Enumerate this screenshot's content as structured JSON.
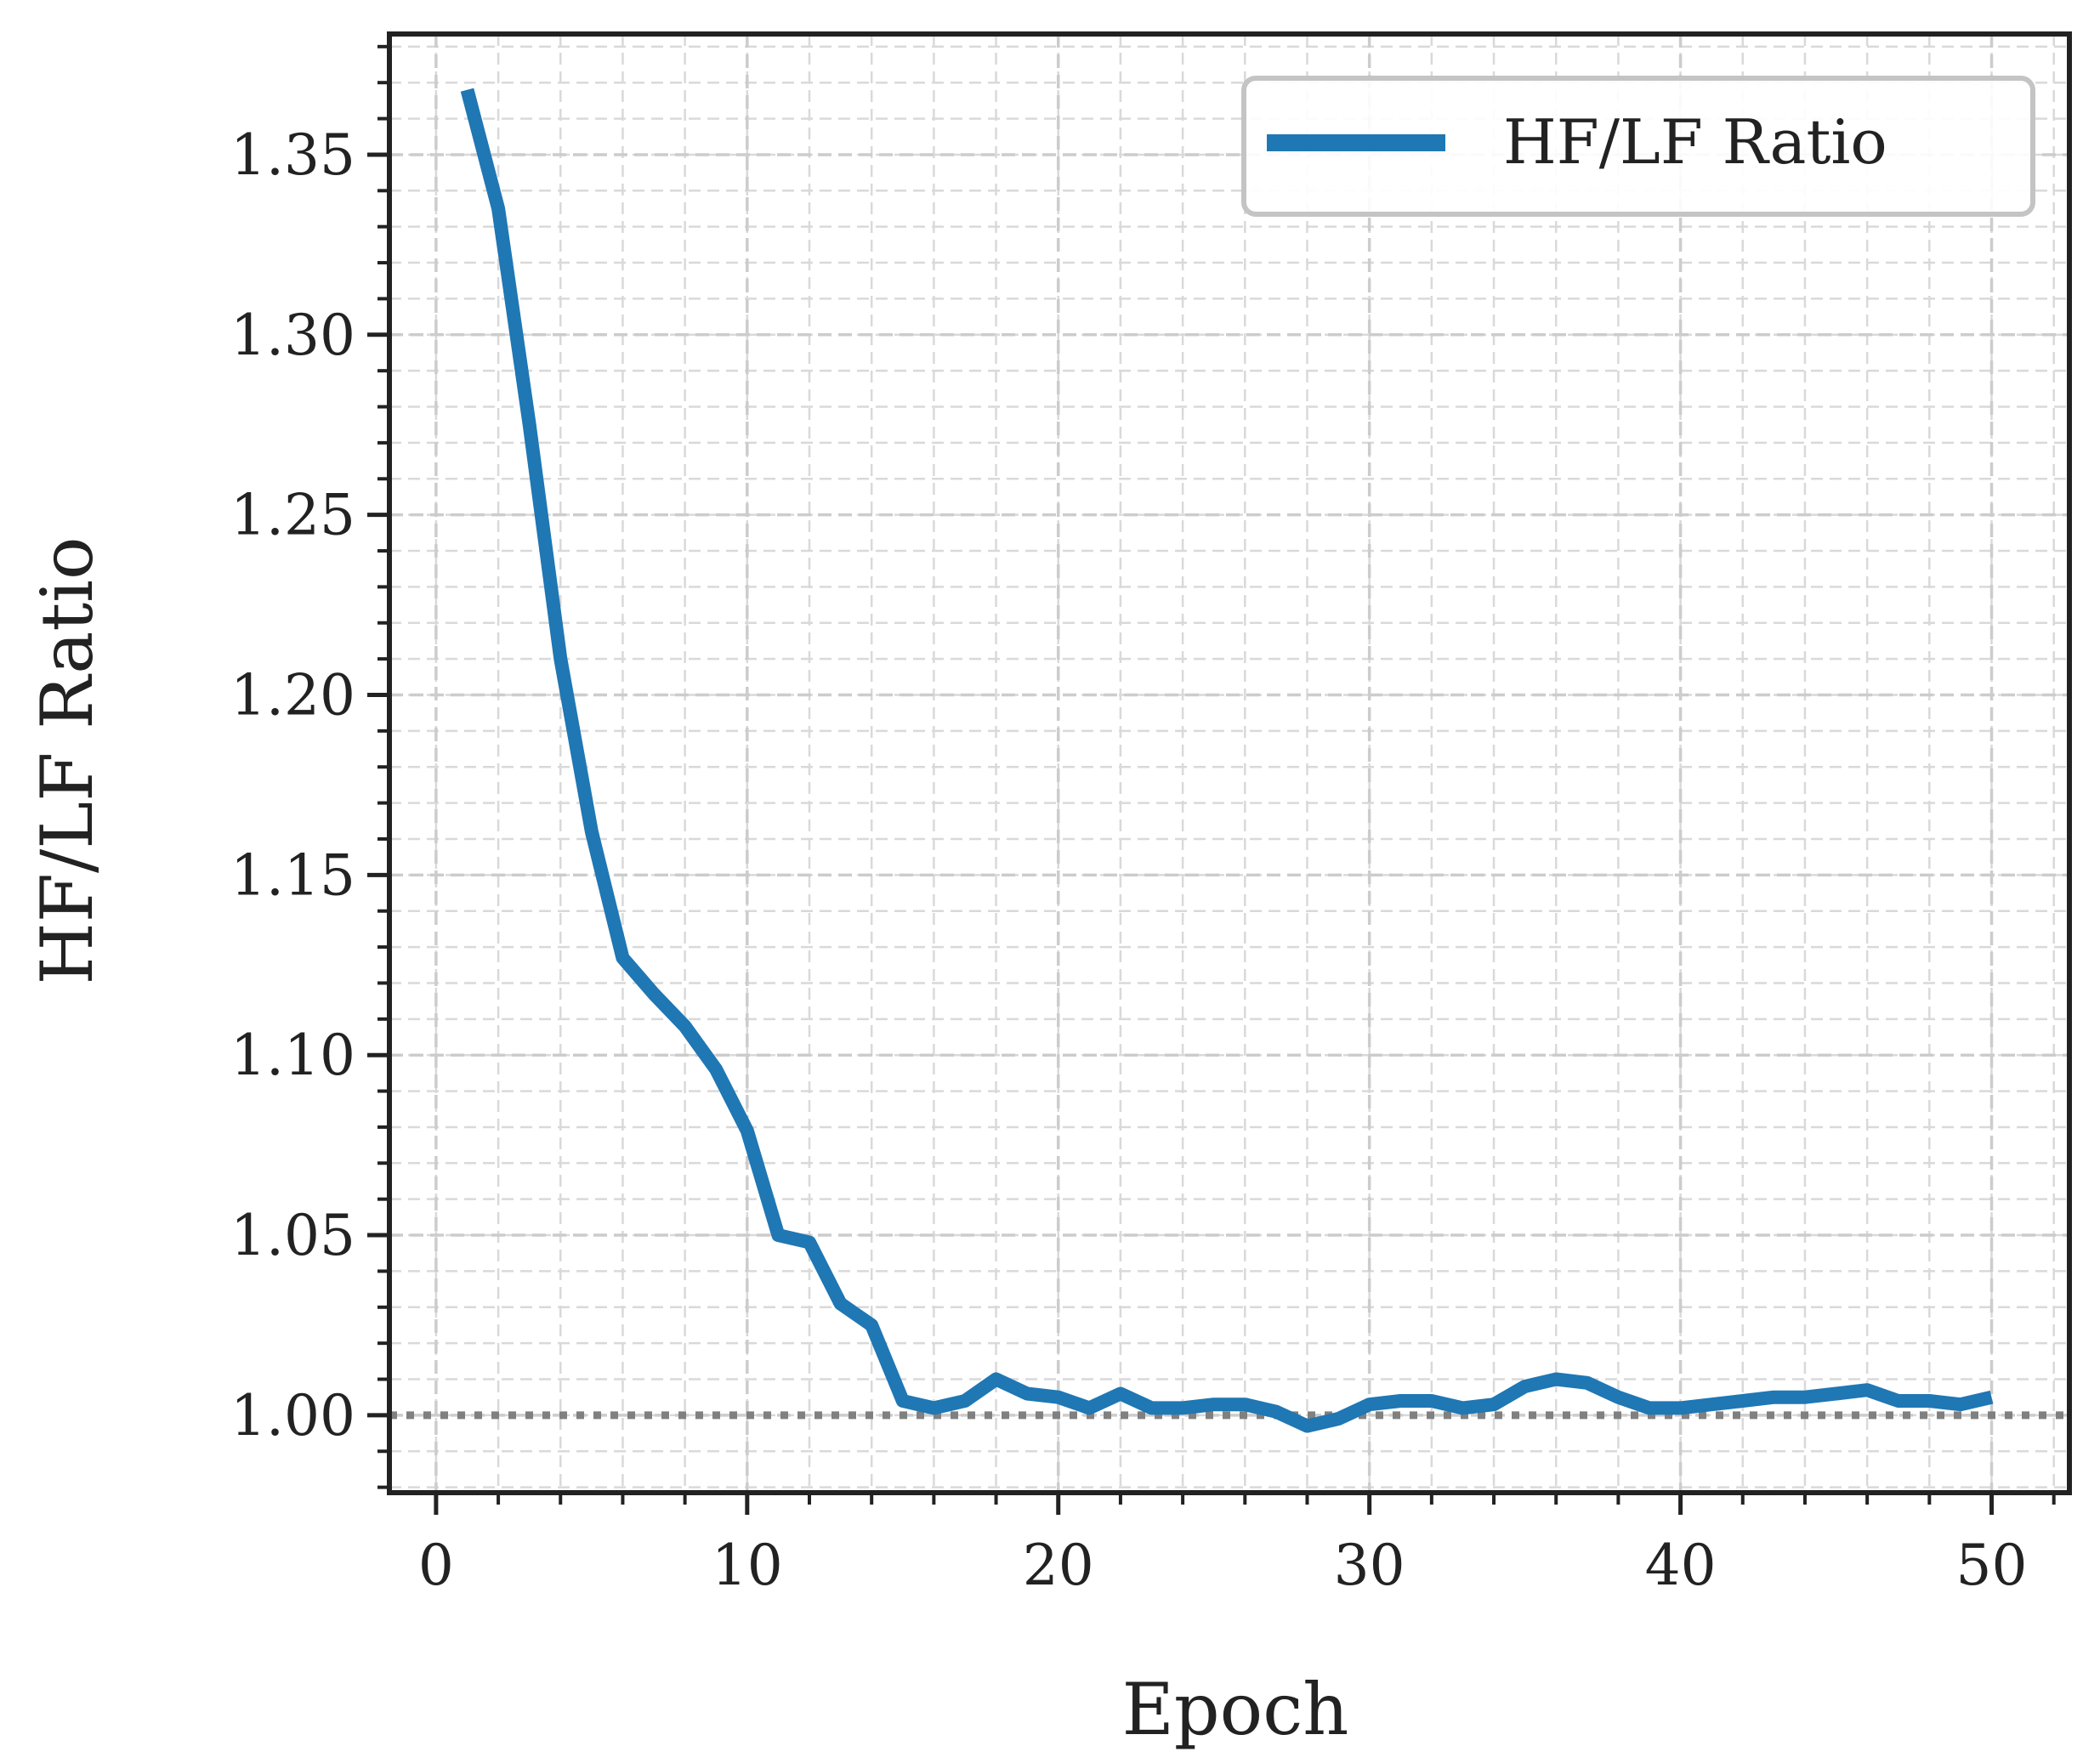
{
  "chart_data": {
    "type": "line",
    "xlabel": "Epoch",
    "ylabel": "HF/LF Ratio",
    "xlim": [
      -1.5,
      52.5
    ],
    "ylim": [
      0.9785,
      1.3835
    ],
    "xticks": [
      0,
      10,
      20,
      30,
      40,
      50
    ],
    "xtick_labels": [
      "0",
      "10",
      "20",
      "30",
      "40",
      "50"
    ],
    "yticks": [
      1.0,
      1.05,
      1.1,
      1.15,
      1.2,
      1.25,
      1.3,
      1.35
    ],
    "ytick_labels": [
      "1.00",
      "1.05",
      "1.10",
      "1.15",
      "1.20",
      "1.25",
      "1.30",
      "1.35"
    ],
    "x_minor_step": 2,
    "y_minor_step": 0.01,
    "grid": true,
    "legend": {
      "placement": "top-right",
      "entries": [
        "HF/LF Ratio"
      ]
    },
    "reference_line": {
      "y": 1.0,
      "style": "dotted",
      "color": "#808080"
    },
    "series": [
      {
        "name": "HF/LF Ratio",
        "color": "#1f77b4",
        "x": [
          1,
          2,
          3,
          4,
          5,
          6,
          7,
          8,
          9,
          10,
          11,
          12,
          13,
          14,
          15,
          16,
          17,
          18,
          19,
          20,
          21,
          22,
          23,
          24,
          25,
          26,
          27,
          28,
          29,
          30,
          31,
          32,
          33,
          34,
          35,
          36,
          37,
          38,
          39,
          40,
          41,
          42,
          43,
          44,
          45,
          46,
          47,
          48,
          49,
          50
        ],
        "y": [
          1.368,
          1.335,
          1.275,
          1.21,
          1.162,
          1.127,
          1.117,
          1.108,
          1.096,
          1.079,
          1.05,
          1.048,
          1.031,
          1.025,
          1.004,
          1.002,
          1.004,
          1.01,
          1.006,
          1.005,
          1.002,
          1.006,
          1.002,
          1.002,
          1.003,
          1.003,
          1.001,
          0.997,
          0.999,
          1.003,
          1.004,
          1.004,
          1.002,
          1.003,
          1.008,
          1.01,
          1.009,
          1.005,
          1.002,
          1.002,
          1.003,
          1.004,
          1.005,
          1.005,
          1.006,
          1.007,
          1.004,
          1.004,
          1.003,
          1.005
        ]
      }
    ]
  }
}
